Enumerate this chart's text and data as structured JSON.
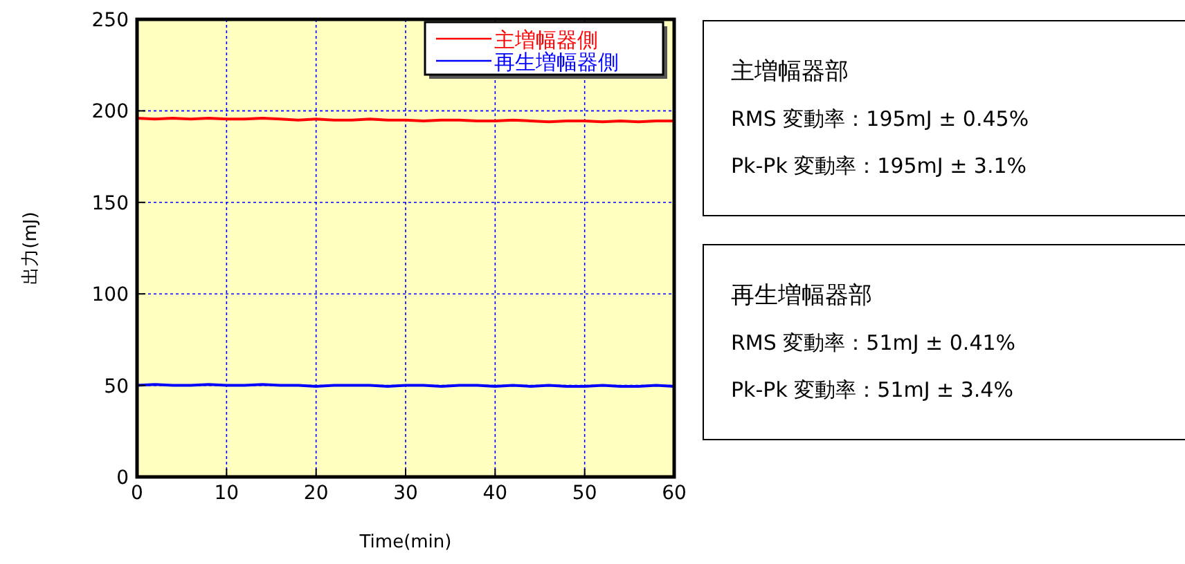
{
  "chart_data": {
    "type": "line",
    "xlabel": "Time(min)",
    "ylabel": "出力(mJ)",
    "x": [
      0,
      2,
      4,
      6,
      8,
      10,
      12,
      14,
      16,
      18,
      20,
      22,
      24,
      26,
      28,
      30,
      32,
      34,
      36,
      38,
      40,
      42,
      44,
      46,
      48,
      50,
      52,
      54,
      56,
      58,
      60
    ],
    "series": [
      {
        "name": "主増幅器側",
        "color": "#ff0000",
        "values": [
          196,
          195.5,
          196,
          195.5,
          196,
          195.5,
          195.5,
          196,
          195.5,
          195,
          195.5,
          195,
          195,
          195.5,
          195,
          195,
          194.5,
          195,
          195,
          194.5,
          194.5,
          195,
          194.5,
          194,
          194.5,
          194.5,
          194,
          194.5,
          194,
          194.5,
          194.5
        ]
      },
      {
        "name": "再生増幅器側",
        "color": "#0000ff",
        "values": [
          50,
          50.5,
          50,
          50,
          50.5,
          50,
          50,
          50.5,
          50,
          50,
          49.5,
          50,
          50,
          50,
          49.5,
          50,
          50,
          49.5,
          50,
          50,
          49.5,
          50,
          49.5,
          50,
          49.5,
          49.5,
          50,
          49.5,
          49.5,
          50,
          49.5
        ]
      }
    ],
    "xlim": [
      0,
      60
    ],
    "xticks": [
      0,
      10,
      20,
      30,
      40,
      50,
      60
    ],
    "ylim": [
      0,
      250
    ],
    "yticks": [
      0,
      50,
      100,
      150,
      200,
      250
    ],
    "grid": true,
    "legend": "top right",
    "annotations": [
      "主増幅器部",
      "RMS 変動率：195mJ ± 0.45%",
      "Pk-Pk 変動率：195mJ ± 3.1%",
      "再生増幅器部",
      "RMS 変動率：51mJ ± 0.41%",
      "Pk-Pk 変動率：51mJ ± 3.4%"
    ]
  }
}
